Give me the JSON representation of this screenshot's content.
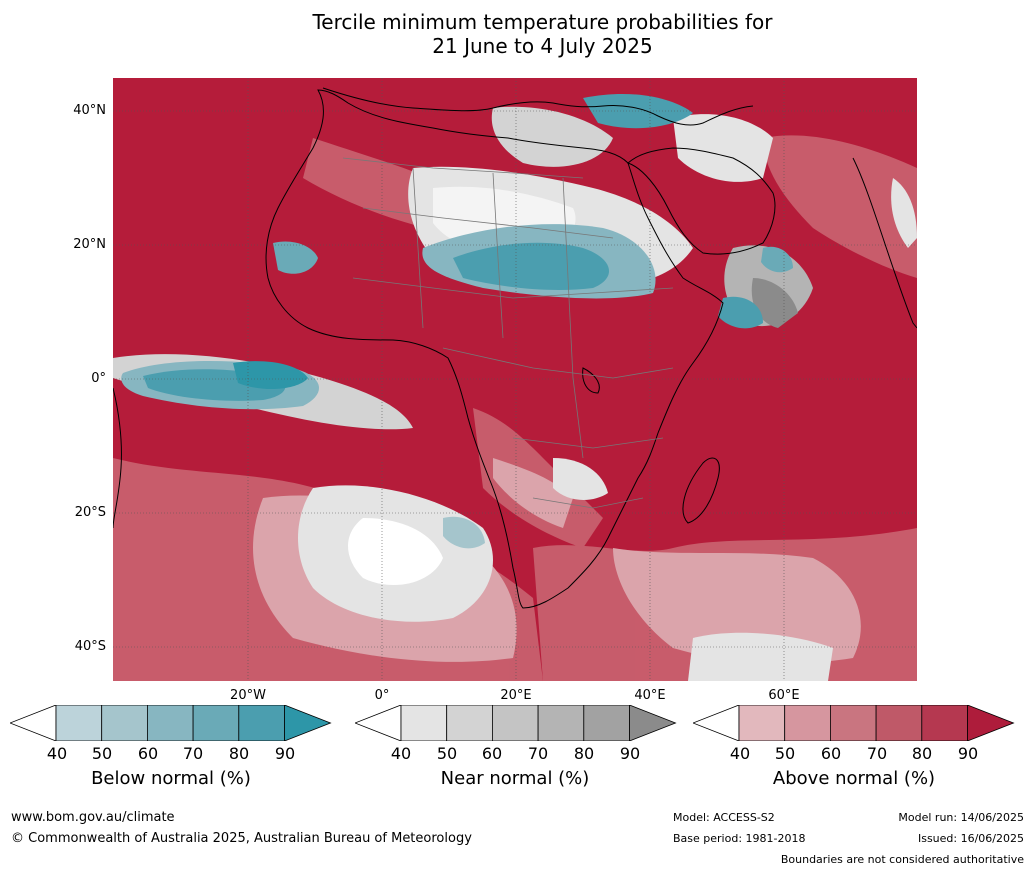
{
  "title": {
    "line1": "Tercile minimum temperature probabilities for",
    "line2": "21 June to 4 July 2025"
  },
  "map": {
    "latitude_labels": [
      "40°N",
      "20°N",
      "0°",
      "20°S",
      "40°S"
    ],
    "longitude_labels": [
      "20°W",
      "0°",
      "20°E",
      "40°E",
      "60°E"
    ],
    "dominant_category": "Above normal"
  },
  "legend": {
    "below": {
      "label": "Below normal (%)",
      "ticks": [
        "40",
        "50",
        "60",
        "70",
        "80",
        "90"
      ],
      "colors": [
        "#ffffff",
        "#bcd3da",
        "#a5c5cc",
        "#87b6c1",
        "#6aaab7",
        "#4b9eaf",
        "#2d96a8"
      ]
    },
    "near": {
      "label": "Near normal (%)",
      "ticks": [
        "40",
        "50",
        "60",
        "70",
        "80",
        "90"
      ],
      "colors": [
        "#ffffff",
        "#e4e4e4",
        "#d3d3d3",
        "#c4c4c4",
        "#b4b4b4",
        "#a2a2a2",
        "#8b8b8b"
      ]
    },
    "above": {
      "label": "Above normal (%)",
      "ticks": [
        "40",
        "50",
        "60",
        "70",
        "80",
        "90"
      ],
      "colors": [
        "#ffffff",
        "#e2b8bd",
        "#d6969f",
        "#c97580",
        "#bf5968",
        "#b53850",
        "#ae1c3b"
      ]
    }
  },
  "footer": {
    "website": "www.bom.gov.au/climate",
    "copyright": "© Commonwealth of Australia 2025, Australian Bureau of Meteorology",
    "model": "Model: ACCESS-S2",
    "base_period": "Base period: 1981-2018",
    "model_run": "Model run: 14/06/2025",
    "issued": "Issued: 16/06/2025",
    "disclaimer": "Boundaries are not considered authoritative"
  }
}
